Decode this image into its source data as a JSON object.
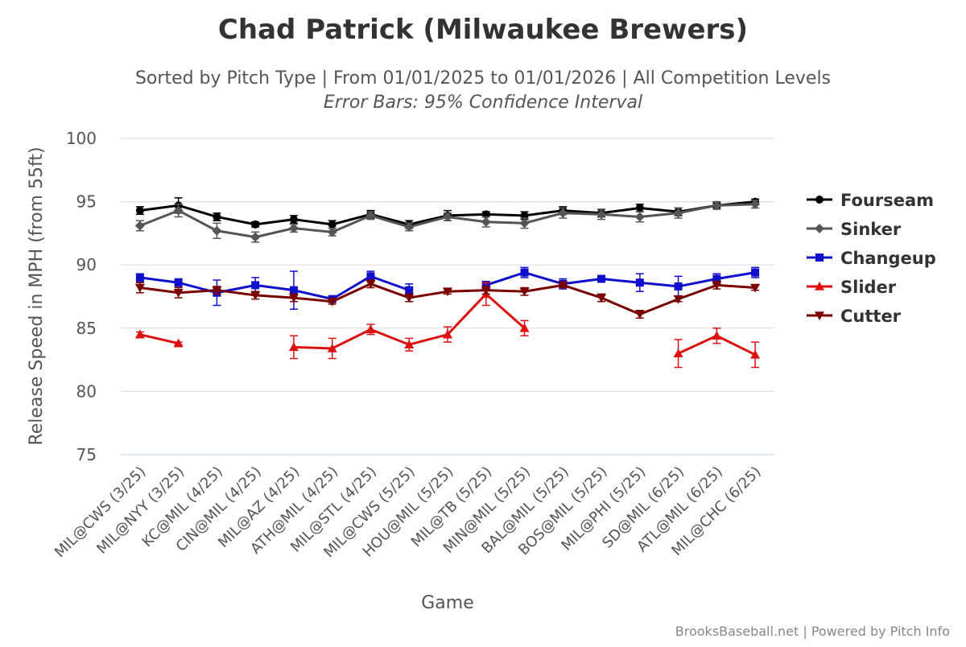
{
  "chart_data": {
    "type": "line",
    "title": "Chad Patrick (Milwaukee Brewers)",
    "subtitle": "Sorted by Pitch Type | From 01/01/2025 to 01/01/2026 | All Competition Levels",
    "subtitle2": "Error Bars: 95% Confidence Interval",
    "xlabel": "Game",
    "ylabel": "Release Speed in MPH (from 55ft)",
    "ylim": [
      75,
      100
    ],
    "yticks": [
      "75",
      "80",
      "85",
      "90",
      "95",
      "100"
    ],
    "categories": [
      "MIL@CWS (3/25)",
      "MIL@NYY (3/25)",
      "KC@MIL (4/25)",
      "CIN@MIL (4/25)",
      "MIL@AZ (4/25)",
      "ATH@MIL (4/25)",
      "MIL@STL (4/25)",
      "MIL@CWS (5/25)",
      "HOU@MIL (5/25)",
      "MIL@TB (5/25)",
      "MIN@MIL (5/25)",
      "BAL@MIL (5/25)",
      "BOS@MIL (5/25)",
      "MIL@PHI (5/25)",
      "SD@MIL (6/25)",
      "ATL@MIL (6/25)",
      "MIL@CHC (6/25)"
    ],
    "legend_position": "right",
    "series": [
      {
        "name": "Fourseam",
        "color": "#000000",
        "marker": "circle",
        "values": [
          94.3,
          94.7,
          93.8,
          93.2,
          93.6,
          93.2,
          94.0,
          93.2,
          93.9,
          94.0,
          93.9,
          94.3,
          94.1,
          94.5,
          94.2,
          94.7,
          95.0
        ],
        "errors": [
          0.3,
          0.6,
          0.3,
          0.2,
          0.3,
          0.3,
          0.3,
          0.3,
          0.4,
          0.2,
          0.3,
          0.3,
          0.3,
          0.3,
          0.3,
          0.2,
          0.2
        ]
      },
      {
        "name": "Sinker",
        "color": "#555555",
        "marker": "diamond",
        "values": [
          93.1,
          94.3,
          92.7,
          92.2,
          92.9,
          92.6,
          93.9,
          93.0,
          93.8,
          93.4,
          93.3,
          94.1,
          94.0,
          93.8,
          94.1,
          94.7,
          94.8
        ],
        "errors": [
          0.4,
          0.5,
          0.6,
          0.4,
          0.3,
          0.3,
          0.3,
          0.3,
          0.3,
          0.4,
          0.4,
          0.4,
          0.4,
          0.4,
          0.4,
          0.3,
          0.3
        ]
      },
      {
        "name": "Changeup",
        "color": "#1010cc",
        "marker": "square",
        "values": [
          89.0,
          88.6,
          87.8,
          88.4,
          88.0,
          87.3,
          89.1,
          88.0,
          null,
          88.4,
          89.4,
          88.5,
          88.9,
          88.6,
          88.3,
          88.9,
          89.4
        ],
        "errors": [
          0.3,
          0.3,
          1.0,
          0.6,
          1.5,
          0.2,
          0.4,
          0.5,
          null,
          0.3,
          0.4,
          0.4,
          0.2,
          0.7,
          0.8,
          0.4,
          0.4
        ]
      },
      {
        "name": "Slider",
        "color": "#dd1111",
        "marker": "triangle",
        "values": [
          84.5,
          83.8,
          null,
          null,
          83.5,
          83.4,
          84.9,
          83.7,
          84.5,
          87.7,
          85.0,
          null,
          null,
          null,
          83.0,
          84.4,
          82.9
        ],
        "errors": [
          0.2,
          0.1,
          null,
          null,
          0.9,
          0.8,
          0.4,
          0.5,
          0.6,
          0.9,
          0.6,
          null,
          null,
          null,
          1.1,
          0.6,
          1.0
        ]
      },
      {
        "name": "Cutter",
        "color": "#7a0000",
        "marker": "triangle-down",
        "values": [
          88.2,
          87.8,
          88.0,
          87.6,
          87.4,
          87.1,
          88.5,
          87.4,
          87.9,
          88.0,
          87.9,
          88.4,
          87.4,
          86.1,
          87.3,
          88.4,
          88.2
        ],
        "errors": [
          0.4,
          0.4,
          0.3,
          0.3,
          0.3,
          0.2,
          0.3,
          0.3,
          0.2,
          0.3,
          0.3,
          0.2,
          0.3,
          0.3,
          0.2,
          0.3,
          0.2
        ]
      }
    ]
  },
  "credits": "BrooksBaseball.net | Powered by Pitch Info"
}
